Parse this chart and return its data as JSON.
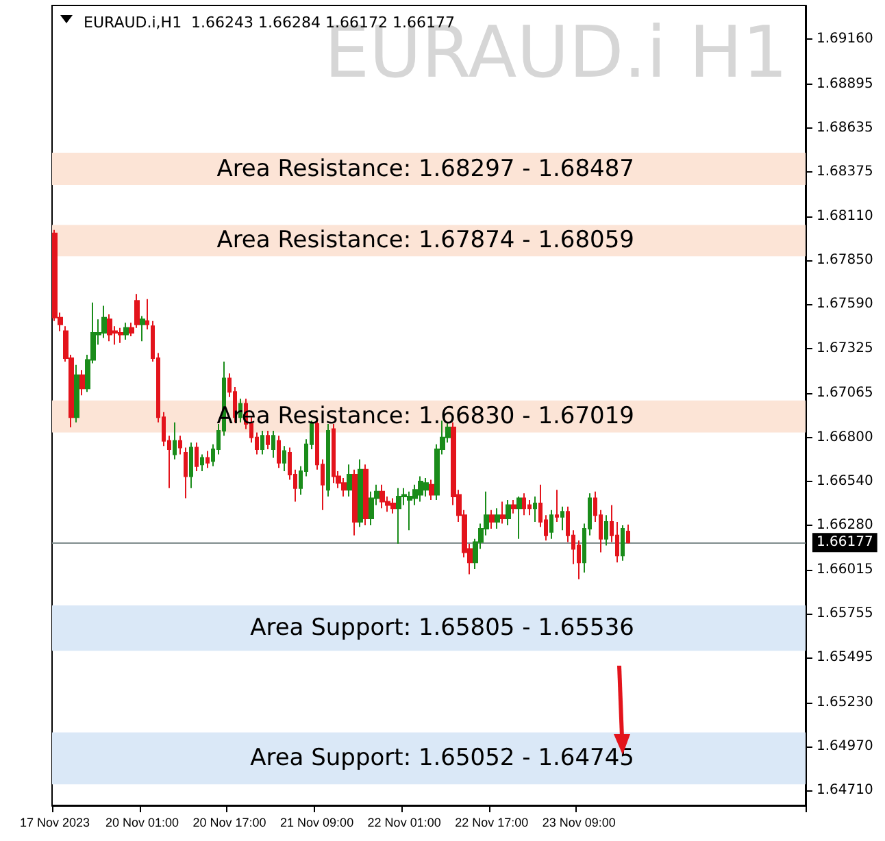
{
  "chart_data": {
    "type": "candlestick",
    "title": "EURAUD.i H1",
    "subtitle": "EURAUD.i,H1  1.66243 1.66284 1.66172 1.66177",
    "categories": [
      "17 Nov 2023",
      null,
      null,
      null,
      null,
      null,
      null,
      null,
      null,
      null,
      null,
      null,
      null,
      null,
      null,
      null,
      "20 Nov 01:00",
      null,
      null,
      null,
      null,
      null,
      null,
      null,
      null,
      null,
      null,
      null,
      null,
      null,
      null,
      null,
      "20 Nov 17:00",
      null,
      null,
      null,
      null,
      null,
      null,
      null,
      null,
      null,
      null,
      null,
      null,
      null,
      null,
      null,
      "21 Nov 09:00",
      null,
      null,
      null,
      null,
      null,
      null,
      null,
      null,
      null,
      null,
      null,
      null,
      null,
      null,
      null,
      "22 Nov 01:00",
      null,
      null,
      null,
      null,
      null,
      null,
      null,
      null,
      null,
      null,
      null,
      null,
      null,
      null,
      null,
      "22 Nov 17:00",
      null,
      null,
      null,
      null,
      null,
      null,
      null,
      null,
      null,
      null,
      null,
      null,
      null,
      null,
      null,
      "23 Nov 09:00",
      null,
      null,
      null,
      null,
      null,
      null,
      null,
      null,
      null,
      null,
      null,
      null,
      null,
      null,
      null,
      null,
      null,
      null,
      null,
      null,
      null,
      null,
      null,
      null,
      null,
      null,
      null,
      null,
      null,
      null,
      null,
      null,
      null,
      null,
      null,
      null,
      null,
      null,
      null,
      null,
      null
    ],
    "ohlc": [
      [
        1.6801,
        1.6803,
        1.6749,
        1.6751
      ],
      [
        1.6751,
        1.6754,
        1.6743,
        1.6747
      ],
      [
        1.6743,
        1.6746,
        1.6725,
        1.6727
      ],
      [
        1.6727,
        1.6729,
        1.6686,
        1.6692
      ],
      [
        1.6692,
        1.6723,
        1.6689,
        1.6717
      ],
      [
        1.6717,
        1.672,
        1.6705,
        1.6709
      ],
      [
        1.6709,
        1.6729,
        1.6707,
        1.6726
      ],
      [
        1.6726,
        1.676,
        1.6724,
        1.6742
      ],
      [
        1.6741,
        1.675,
        1.6735,
        1.6742
      ],
      [
        1.6742,
        1.6758,
        1.6739,
        1.6751
      ],
      [
        1.675,
        1.6753,
        1.6737,
        1.6741
      ],
      [
        1.6743,
        1.6746,
        1.6735,
        1.6742
      ],
      [
        1.6742,
        1.6745,
        1.6736,
        1.6741
      ],
      [
        1.6741,
        1.6748,
        1.6738,
        1.6745
      ],
      [
        1.6745,
        1.6748,
        1.674,
        1.6742
      ],
      [
        1.6761,
        1.6765,
        1.6745,
        1.6747
      ],
      [
        1.6747,
        1.6752,
        1.6737,
        1.675
      ],
      [
        1.6749,
        1.6762,
        1.6744,
        1.6747
      ],
      [
        1.6746,
        1.6749,
        1.6725,
        1.6727
      ],
      [
        1.6727,
        1.673,
        1.6689,
        1.6692
      ],
      [
        1.6692,
        1.6695,
        1.6675,
        1.6678
      ],
      [
        1.6678,
        1.6681,
        1.665,
        1.6673
      ],
      [
        1.667,
        1.6689,
        1.6667,
        1.6678
      ],
      [
        1.6678,
        1.6681,
        1.667,
        1.6674
      ],
      [
        1.6671,
        1.6674,
        1.6644,
        1.6657
      ],
      [
        1.6657,
        1.6677,
        1.665,
        1.6674
      ],
      [
        1.6674,
        1.6677,
        1.666,
        1.6663
      ],
      [
        1.6664,
        1.667,
        1.666,
        1.6668
      ],
      [
        1.6668,
        1.6672,
        1.6662,
        1.6665
      ],
      [
        1.6666,
        1.6676,
        1.6663,
        1.6673
      ],
      [
        1.6673,
        1.6688,
        1.667,
        1.6684
      ],
      [
        1.6684,
        1.6725,
        1.6681,
        1.6715
      ],
      [
        1.6715,
        1.6718,
        1.6704,
        1.6707
      ],
      [
        1.6707,
        1.671,
        1.6689,
        1.6692
      ],
      [
        1.6692,
        1.6703,
        1.6689,
        1.67
      ],
      [
        1.67,
        1.6703,
        1.6685,
        1.6688
      ],
      [
        1.6688,
        1.6692,
        1.6677,
        1.668
      ],
      [
        1.668,
        1.6683,
        1.667,
        1.6673
      ],
      [
        1.6673,
        1.6684,
        1.667,
        1.6681
      ],
      [
        1.6681,
        1.6684,
        1.6673,
        1.6676
      ],
      [
        1.6673,
        1.6684,
        1.6668,
        1.6681
      ],
      [
        1.6678,
        1.6681,
        1.6662,
        1.6665
      ],
      [
        1.6665,
        1.6675,
        1.666,
        1.6672
      ],
      [
        1.6671,
        1.6674,
        1.6655,
        1.6658
      ],
      [
        1.6658,
        1.6661,
        1.6642,
        1.665
      ],
      [
        1.665,
        1.6663,
        1.6646,
        1.666
      ],
      [
        1.666,
        1.6679,
        1.6657,
        1.6676
      ],
      [
        1.6676,
        1.669,
        1.6673,
        1.6688
      ],
      [
        1.6688,
        1.6691,
        1.6661,
        1.6664
      ],
      [
        1.6664,
        1.6667,
        1.6637,
        1.6652
      ],
      [
        1.6649,
        1.6688,
        1.6645,
        1.6684
      ],
      [
        1.6685,
        1.6688,
        1.6653,
        1.6657
      ],
      [
        1.6657,
        1.666,
        1.665,
        1.6653
      ],
      [
        1.6653,
        1.6656,
        1.6645,
        1.6649
      ],
      [
        1.6649,
        1.6664,
        1.6645,
        1.6658
      ],
      [
        1.6658,
        1.6661,
        1.6622,
        1.663
      ],
      [
        1.663,
        1.6667,
        1.6627,
        1.6661
      ],
      [
        1.6661,
        1.6664,
        1.6628,
        1.6632
      ],
      [
        1.6632,
        1.6648,
        1.6628,
        1.6644
      ],
      [
        1.6644,
        1.6652,
        1.664,
        1.6648
      ],
      [
        1.6648,
        1.6652,
        1.6638,
        1.6642
      ],
      [
        1.6642,
        1.6645,
        1.6636,
        1.664
      ],
      [
        1.6641,
        1.6644,
        1.6635,
        1.6638
      ],
      [
        1.6638,
        1.665,
        1.6617,
        1.6645
      ],
      [
        1.6645,
        1.665,
        1.664,
        1.6646
      ],
      [
        1.6643,
        1.6648,
        1.6625,
        1.6645
      ],
      [
        1.6644,
        1.6652,
        1.664,
        1.6649
      ],
      [
        1.6646,
        1.6657,
        1.6642,
        1.6654
      ],
      [
        1.6649,
        1.6656,
        1.6645,
        1.6653
      ],
      [
        1.6652,
        1.6655,
        1.6643,
        1.6646
      ],
      [
        1.6646,
        1.6676,
        1.6643,
        1.6673
      ],
      [
        1.6673,
        1.669,
        1.667,
        1.668
      ],
      [
        1.668,
        1.6689,
        1.6677,
        1.6686
      ],
      [
        1.6686,
        1.6689,
        1.664,
        1.6645
      ],
      [
        1.6646,
        1.6649,
        1.663,
        1.6634
      ],
      [
        1.6634,
        1.6637,
        1.6609,
        1.6612
      ],
      [
        1.6614,
        1.6617,
        1.6599,
        1.6606
      ],
      [
        1.6606,
        1.662,
        1.6602,
        1.6618
      ],
      [
        1.6618,
        1.6629,
        1.6614,
        1.6626
      ],
      [
        1.6626,
        1.6648,
        1.6622,
        1.6634
      ],
      [
        1.6634,
        1.6637,
        1.6626,
        1.663
      ],
      [
        1.663,
        1.6638,
        1.6626,
        1.6634
      ],
      [
        1.6634,
        1.6642,
        1.6629,
        1.6632
      ],
      [
        1.6632,
        1.6643,
        1.6628,
        1.664
      ],
      [
        1.664,
        1.6643,
        1.6635,
        1.6638
      ],
      [
        1.6638,
        1.6645,
        1.662,
        1.6644
      ],
      [
        1.6644,
        1.6647,
        1.6634,
        1.6638
      ],
      [
        1.664,
        1.6643,
        1.6634,
        1.6638
      ],
      [
        1.6638,
        1.6645,
        1.663,
        1.6641
      ],
      [
        1.6641,
        1.6652,
        1.6627,
        1.663
      ],
      [
        1.6631,
        1.6634,
        1.6619,
        1.6622
      ],
      [
        1.6624,
        1.6637,
        1.662,
        1.6634
      ],
      [
        1.6634,
        1.6649,
        1.663,
        1.6633
      ],
      [
        1.6633,
        1.6639,
        1.6625,
        1.6636
      ],
      [
        1.6636,
        1.6639,
        1.6618,
        1.6622
      ],
      [
        1.6622,
        1.6625,
        1.6605,
        1.6614
      ],
      [
        1.6616,
        1.6619,
        1.6596,
        1.6606
      ],
      [
        1.6606,
        1.6629,
        1.66,
        1.6626
      ],
      [
        1.6626,
        1.6647,
        1.6622,
        1.6644
      ],
      [
        1.6644,
        1.6648,
        1.663,
        1.6634
      ],
      [
        1.6634,
        1.6637,
        1.6612,
        1.662
      ],
      [
        1.662,
        1.6634,
        1.6616,
        1.663
      ],
      [
        1.663,
        1.664,
        1.6618,
        1.6622
      ],
      [
        1.6622,
        1.663,
        1.6606,
        1.661
      ],
      [
        1.661,
        1.6628,
        1.6607,
        1.6626
      ],
      [
        1.66243,
        1.66284,
        1.66172,
        1.66177
      ],
      null,
      null,
      null,
      null,
      null,
      null,
      null,
      null,
      null,
      null,
      null,
      null,
      null,
      null,
      null,
      null,
      null,
      null,
      null,
      null,
      null,
      null,
      null,
      null,
      null,
      null,
      null,
      null,
      null,
      null,
      null,
      null
    ],
    "ylim": [
      1.6462,
      1.6936
    ],
    "yticks": [
      {
        "value": 1.6916,
        "label": "1.69160"
      },
      {
        "value": 1.68895,
        "label": "1.68895"
      },
      {
        "value": 1.68635,
        "label": "1.68635"
      },
      {
        "value": 1.68375,
        "label": "1.68375"
      },
      {
        "value": 1.6811,
        "label": "1.68110"
      },
      {
        "value": 1.6785,
        "label": "1.67850"
      },
      {
        "value": 1.6759,
        "label": "1.67590"
      },
      {
        "value": 1.67325,
        "label": "1.67325"
      },
      {
        "value": 1.67065,
        "label": "1.67065"
      },
      {
        "value": 1.668,
        "label": "1.66800"
      },
      {
        "value": 1.6654,
        "label": "1.66540"
      },
      {
        "value": 1.6628,
        "label": "1.66280"
      },
      {
        "value": 1.66015,
        "label": "1.66015"
      },
      {
        "value": 1.65755,
        "label": "1.65755"
      },
      {
        "value": 1.65495,
        "label": "1.65495"
      },
      {
        "value": 1.6523,
        "label": "1.65230"
      },
      {
        "value": 1.6497,
        "label": "1.64970"
      },
      {
        "value": 1.6471,
        "label": "1.64710"
      }
    ],
    "bands": [
      {
        "axis": "y",
        "from": 1.68297,
        "to": 1.68487,
        "label": "Area Resistance: 1.68297 - 1.68487",
        "color": "#fce4d6"
      },
      {
        "axis": "y",
        "from": 1.67874,
        "to": 1.68059,
        "label": "Area Resistance: 1.67874 - 1.68059",
        "color": "#fce4d6"
      },
      {
        "axis": "y",
        "from": 1.6683,
        "to": 1.67019,
        "label": "Area Resistance: 1.66830 - 1.67019",
        "color": "#fce4d6"
      },
      {
        "axis": "y",
        "from": 1.65536,
        "to": 1.65805,
        "label": "Area Support: 1.65805 - 1.65536",
        "color": "#dae8f7"
      },
      {
        "axis": "y",
        "from": 1.64745,
        "to": 1.65052,
        "label": "Area Support: 1.65052 - 1.64745",
        "color": "#dae8f7"
      }
    ],
    "ref_lines": [
      {
        "axis": "y",
        "value": 1.66177,
        "label": "1.66177",
        "color": "#7f8c8d"
      }
    ],
    "grid": false
  }
}
